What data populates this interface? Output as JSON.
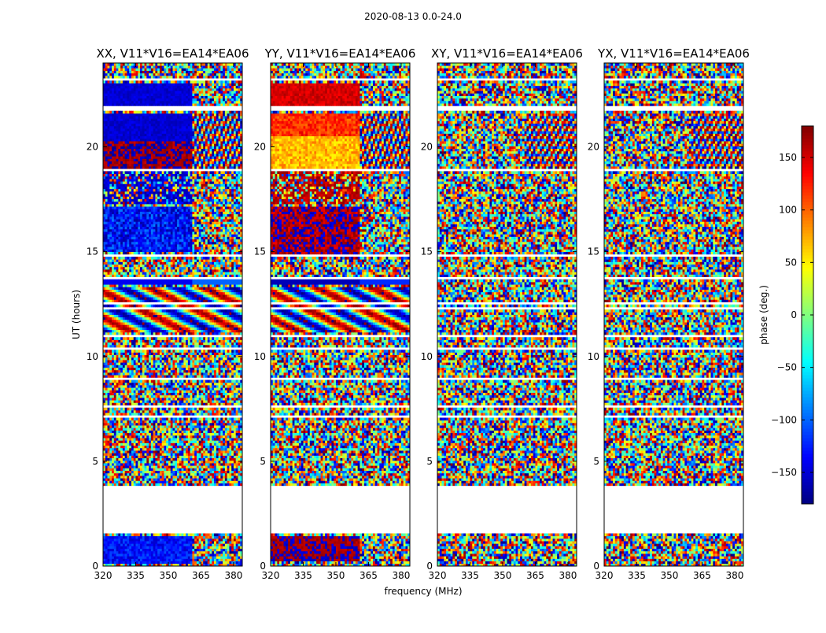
{
  "chart_data": {
    "type": "heatmap",
    "suptitle": "2020-08-13 0.0-24.0",
    "xlabel": "frequency (MHz)",
    "ylabel": "UT (hours)",
    "xlim": [
      320,
      384
    ],
    "ylim": [
      0,
      24
    ],
    "xticks": [
      "320",
      "335",
      "350",
      "365",
      "380"
    ],
    "xtick_values": [
      320,
      335,
      350,
      365,
      380
    ],
    "yticks": [
      "0",
      "5",
      "10",
      "15",
      "20"
    ],
    "ytick_values": [
      0,
      5,
      10,
      15,
      20
    ],
    "panels": [
      {
        "title": "XX, V11*V16=EA14*EA06",
        "mode": "xx"
      },
      {
        "title": "YY, V11*V16=EA14*EA06",
        "mode": "yy"
      },
      {
        "title": "XY, V11*V16=EA14*EA06",
        "mode": "noise"
      },
      {
        "title": "YX, V11*V16=EA14*EA06",
        "mode": "noise"
      }
    ],
    "colorbar": {
      "label": "phase (deg.)",
      "range": [
        -180,
        180
      ],
      "ticks": [
        "150",
        "100",
        "50",
        "0",
        "−50",
        "−100",
        "−150"
      ],
      "tick_values": [
        150,
        100,
        50,
        0,
        -50,
        -100,
        -150
      ],
      "colormap": "jet"
    },
    "data_gaps_hours": [
      [
        1.6,
        3.9
      ],
      [
        21.7,
        22.0
      ],
      [
        10.9,
        11.1
      ]
    ],
    "legend": "none",
    "grid": false
  }
}
